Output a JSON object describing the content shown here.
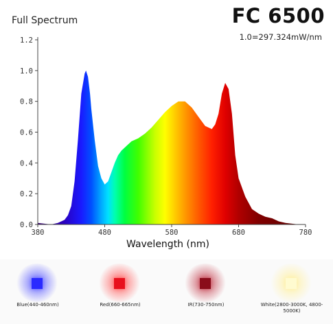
{
  "header": {
    "chart_title": "Full Spectrum",
    "model": "FC 6500",
    "scale_note": "1.0=297.324mW/nm"
  },
  "legend": [
    {
      "label": "Blue(440-460nm)",
      "color": "#2a2aff",
      "glow": "#6b6bff"
    },
    {
      "label": "Red(660-665nm)",
      "color": "#e8101c",
      "glow": "#ff6b6b"
    },
    {
      "label": "IR(730-750nm)",
      "color": "#8a0c1a",
      "glow": "#c9505e"
    },
    {
      "label": "White(2800-3000K, 4800-5000K)",
      "color": "#fffbd0",
      "glow": "#fff1a8"
    }
  ],
  "chart_data": {
    "type": "area",
    "title": "Full Spectrum",
    "xlabel": "Wavelength (nm)",
    "ylabel": "",
    "xlim": [
      380,
      780
    ],
    "ylim": [
      0,
      1.2
    ],
    "xticks": [
      380,
      480,
      580,
      680,
      780
    ],
    "yticks": [
      0.0,
      0.2,
      0.4,
      0.6,
      0.8,
      1.0,
      1.2
    ],
    "grid": false,
    "x": [
      380,
      400,
      410,
      420,
      425,
      430,
      435,
      440,
      445,
      450,
      452,
      455,
      458,
      460,
      465,
      470,
      475,
      480,
      485,
      490,
      495,
      500,
      505,
      510,
      515,
      520,
      530,
      540,
      550,
      560,
      570,
      580,
      590,
      600,
      610,
      620,
      630,
      640,
      645,
      650,
      655,
      660,
      665,
      670,
      675,
      680,
      690,
      700,
      710,
      720,
      730,
      740,
      750,
      760,
      770,
      780
    ],
    "values": [
      0.01,
      0.0,
      0.01,
      0.03,
      0.06,
      0.12,
      0.28,
      0.55,
      0.85,
      0.98,
      1.0,
      0.96,
      0.85,
      0.75,
      0.55,
      0.38,
      0.3,
      0.26,
      0.28,
      0.34,
      0.4,
      0.45,
      0.48,
      0.5,
      0.52,
      0.54,
      0.56,
      0.59,
      0.63,
      0.68,
      0.73,
      0.77,
      0.8,
      0.8,
      0.76,
      0.7,
      0.64,
      0.62,
      0.65,
      0.72,
      0.85,
      0.92,
      0.88,
      0.72,
      0.45,
      0.3,
      0.18,
      0.1,
      0.07,
      0.05,
      0.04,
      0.02,
      0.01,
      0.005,
      0.0,
      0.0
    ]
  }
}
